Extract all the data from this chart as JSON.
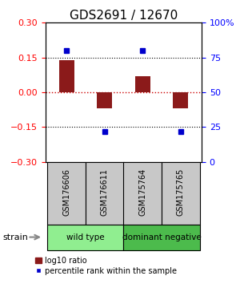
{
  "title": "GDS2691 / 12670",
  "samples": [
    "GSM176606",
    "GSM176611",
    "GSM175764",
    "GSM175765"
  ],
  "log10_ratio": [
    0.14,
    -0.07,
    0.07,
    -0.07
  ],
  "percentile_rank": [
    80,
    22,
    80,
    22
  ],
  "ylim_left": [
    -0.3,
    0.3
  ],
  "ylim_right": [
    0,
    100
  ],
  "yticks_left": [
    -0.3,
    -0.15,
    0,
    0.15,
    0.3
  ],
  "yticks_right": [
    0,
    25,
    50,
    75,
    100
  ],
  "bar_color": "#8B1A1A",
  "dot_color": "#0000CC",
  "hline_zero_color": "#CC0000",
  "hline_pm_color": "black",
  "groups": [
    {
      "label": "wild type",
      "samples": [
        0,
        1
      ],
      "color": "#90EE90"
    },
    {
      "label": "dominant negative",
      "samples": [
        2,
        3
      ],
      "color": "#4CBB4C"
    }
  ],
  "legend_bar_label": "log10 ratio",
  "legend_dot_label": "percentile rank within the sample",
  "strain_label": "strain",
  "sample_box_color": "#C8C8C8",
  "title_fontsize": 11,
  "tick_fontsize": 8,
  "label_fontsize": 8
}
